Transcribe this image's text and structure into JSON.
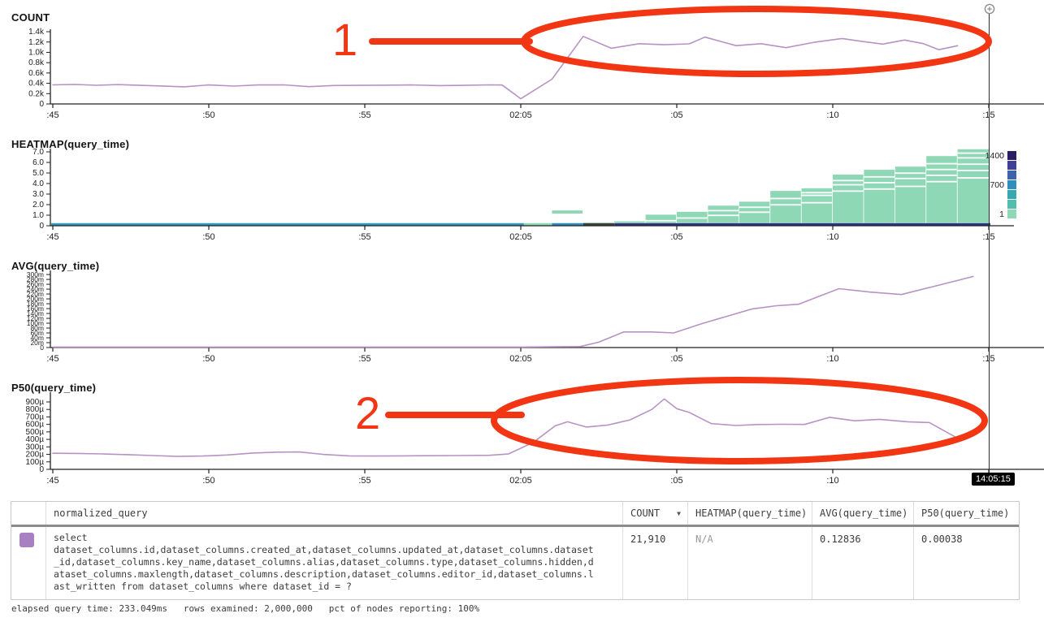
{
  "x_axis": {
    "tick_labels": [
      ":45",
      ":50",
      ":55",
      "02:05",
      ":05",
      ":10",
      ":15"
    ]
  },
  "crosshair": {
    "tooltip": "14:05:15"
  },
  "annotations": {
    "color": "#f23512",
    "items": [
      {
        "label": "1"
      },
      {
        "label": "2"
      }
    ]
  },
  "chart_data": [
    {
      "type": "line",
      "title": "COUNT",
      "series_name": "COUNT",
      "color": "#b793c3",
      "ylim": [
        0,
        1448
      ],
      "x_unit": "minutes_from_first_tick",
      "y_ticks": [
        {
          "label": "1.4k",
          "v": 1400
        },
        {
          "label": "1.2k",
          "v": 1200
        },
        {
          "label": "1.0k",
          "v": 1000
        },
        {
          "label": "0.8k",
          "v": 800
        },
        {
          "label": "0.6k",
          "v": 600
        },
        {
          "label": "0.4k",
          "v": 400
        },
        {
          "label": "0.2k",
          "v": 200
        },
        {
          "label": "0",
          "v": 0
        }
      ],
      "points": [
        [
          0,
          370
        ],
        [
          0.7,
          378
        ],
        [
          1.4,
          362
        ],
        [
          2.1,
          374
        ],
        [
          2.8,
          360
        ],
        [
          3.5,
          348
        ],
        [
          4.2,
          332
        ],
        [
          5,
          368
        ],
        [
          5.8,
          346
        ],
        [
          6.6,
          368
        ],
        [
          7.4,
          370
        ],
        [
          8.2,
          336
        ],
        [
          9,
          358
        ],
        [
          9.8,
          360
        ],
        [
          10.6,
          364
        ],
        [
          11.5,
          368
        ],
        [
          12.4,
          356
        ],
        [
          13.2,
          360
        ],
        [
          14,
          370
        ],
        [
          14.4,
          366
        ],
        [
          15,
          100
        ],
        [
          16,
          480
        ],
        [
          17,
          1310
        ],
        [
          17.9,
          1080
        ],
        [
          18.8,
          1168
        ],
        [
          19.6,
          1148
        ],
        [
          20.4,
          1165
        ],
        [
          20.9,
          1295
        ],
        [
          21.9,
          1130
        ],
        [
          22.7,
          1168
        ],
        [
          23.5,
          1090
        ],
        [
          24.4,
          1195
        ],
        [
          25.3,
          1268
        ],
        [
          25.9,
          1215
        ],
        [
          26.6,
          1160
        ],
        [
          27.3,
          1238
        ],
        [
          27.9,
          1170
        ],
        [
          28.4,
          1052
        ],
        [
          29,
          1128
        ]
      ]
    },
    {
      "type": "heatmap",
      "title": "HEATMAP(query_time)",
      "ylim": [
        0,
        7.31
      ],
      "x_unit": "minutes_from_first_tick",
      "cell_color": "#8ed8b6",
      "y_ticks": [
        {
          "label": "7.0",
          "v": 7
        },
        {
          "label": "6.0",
          "v": 6
        },
        {
          "label": "5.0",
          "v": 5
        },
        {
          "label": "4.0",
          "v": 4
        },
        {
          "label": "3.0",
          "v": 3
        },
        {
          "label": "2.0",
          "v": 2
        },
        {
          "label": "1.0",
          "v": 1
        },
        {
          "label": "0",
          "v": 0
        }
      ],
      "legend": {
        "position": "right",
        "labels": [
          "1400",
          "700",
          "1"
        ],
        "label_rows": [
          0,
          3,
          6
        ],
        "colors": [
          "#2d1e63",
          "#3f3f96",
          "#3d62ae",
          "#2e8fbc",
          "#38a8b0",
          "#53bdae",
          "#8ed8b6"
        ]
      },
      "baseline_segments": [
        {
          "t0": -0.05,
          "t1": 15.1,
          "color": "#3598ba"
        },
        {
          "t0": 15.1,
          "t1": 16.0,
          "color": "#8ed8b6"
        },
        {
          "t0": 16.0,
          "t1": 17.0,
          "color": "#2b8cc0"
        },
        {
          "t0": 17.0,
          "t1": 18.0,
          "color": "#3f413b"
        },
        {
          "t0": 18.0,
          "t1": 30.05,
          "color": "#322f87"
        }
      ],
      "floating_cells": [
        {
          "t0": 16.0,
          "t1": 17.0,
          "v0": 1.15,
          "v1": 1.45
        }
      ],
      "columns": [
        {
          "t0": 17.0,
          "t1": 18.0,
          "h": 0.3,
          "stripes": []
        },
        {
          "t0": 18.0,
          "t1": 19.0,
          "h": 0.42,
          "stripes": []
        },
        {
          "t0": 19.0,
          "t1": 20.0,
          "h": 1.05,
          "stripes": [
            0.55
          ]
        },
        {
          "t0": 20.0,
          "t1": 21.0,
          "h": 1.32,
          "stripes": [
            0.8
          ]
        },
        {
          "t0": 21.0,
          "t1": 22.0,
          "h": 1.9,
          "stripes": [
            1.05,
            1.5
          ]
        },
        {
          "t0": 22.0,
          "t1": 23.0,
          "h": 2.28,
          "stripes": [
            1.35,
            1.82
          ]
        },
        {
          "t0": 23.0,
          "t1": 24.0,
          "h": 3.3,
          "stripes": [
            2.05,
            2.65
          ]
        },
        {
          "t0": 24.0,
          "t1": 25.0,
          "h": 3.55,
          "stripes": [
            2.25,
            2.95,
            3.2
          ]
        },
        {
          "t0": 25.0,
          "t1": 26.0,
          "h": 4.85,
          "stripes": [
            3.35,
            3.95,
            4.35
          ]
        },
        {
          "t0": 26.0,
          "t1": 27.0,
          "h": 5.3,
          "stripes": [
            3.55,
            4.15,
            4.7
          ]
        },
        {
          "t0": 27.0,
          "t1": 28.0,
          "h": 5.6,
          "stripes": [
            3.8,
            4.55,
            5.05
          ]
        },
        {
          "t0": 28.0,
          "t1": 29.0,
          "h": 6.6,
          "stripes": [
            4.25,
            4.85,
            5.4,
            5.95
          ]
        },
        {
          "t0": 29.0,
          "t1": 30.05,
          "h": 7.25,
          "stripes": [
            4.6,
            5.3,
            5.9,
            6.5,
            6.95
          ]
        }
      ]
    },
    {
      "type": "line",
      "title": "AVG(query_time)",
      "series_name": "AVG(query_time)",
      "color": "#b793c3",
      "ylim": [
        0,
        317
      ],
      "y_unit": "milliseconds",
      "x_unit": "minutes_from_first_tick",
      "y_ticks": [
        {
          "label": "300m",
          "v": 300
        },
        {
          "label": "280m",
          "v": 280
        },
        {
          "label": "260m",
          "v": 260
        },
        {
          "label": "240m",
          "v": 240
        },
        {
          "label": "220m",
          "v": 220
        },
        {
          "label": "200m",
          "v": 200
        },
        {
          "label": "180m",
          "v": 180
        },
        {
          "label": "160m",
          "v": 160
        },
        {
          "label": "140m",
          "v": 140
        },
        {
          "label": "120m",
          "v": 120
        },
        {
          "label": "100m",
          "v": 100
        },
        {
          "label": "80m",
          "v": 80
        },
        {
          "label": "60m",
          "v": 60
        },
        {
          "label": "40m",
          "v": 40
        },
        {
          "label": "20m",
          "v": 20
        },
        {
          "label": "0",
          "v": 0
        }
      ],
      "points": [
        [
          0,
          2
        ],
        [
          2,
          2
        ],
        [
          4,
          2
        ],
        [
          6,
          2
        ],
        [
          8,
          2
        ],
        [
          10,
          2
        ],
        [
          12,
          2
        ],
        [
          14,
          2
        ],
        [
          15,
          2
        ],
        [
          16,
          3
        ],
        [
          16.9,
          4
        ],
        [
          17.5,
          22
        ],
        [
          18.3,
          64
        ],
        [
          19.2,
          64
        ],
        [
          19.9,
          60
        ],
        [
          20.8,
          98
        ],
        [
          21.6,
          128
        ],
        [
          22.4,
          158
        ],
        [
          23.2,
          172
        ],
        [
          23.9,
          178
        ],
        [
          25.2,
          242
        ],
        [
          26.2,
          228
        ],
        [
          27.2,
          218
        ],
        [
          28.2,
          250
        ],
        [
          29.5,
          292
        ]
      ]
    },
    {
      "type": "line",
      "title": "P50(query_time)",
      "series_name": "P50(query_time)",
      "color": "#b793c3",
      "ylim": [
        0,
        1030
      ],
      "y_unit": "microseconds",
      "x_unit": "minutes_from_first_tick",
      "y_ticks": [
        {
          "label": "900µ",
          "v": 900
        },
        {
          "label": "800µ",
          "v": 800
        },
        {
          "label": "700µ",
          "v": 700
        },
        {
          "label": "600µ",
          "v": 600
        },
        {
          "label": "500µ",
          "v": 500
        },
        {
          "label": "400µ",
          "v": 400
        },
        {
          "label": "300µ",
          "v": 300
        },
        {
          "label": "200µ",
          "v": 200
        },
        {
          "label": "100µ",
          "v": 100
        },
        {
          "label": "0",
          "v": 0
        }
      ],
      "points": [
        [
          0,
          215
        ],
        [
          0.8,
          212
        ],
        [
          1.6,
          206
        ],
        [
          2.4,
          196
        ],
        [
          3.2,
          184
        ],
        [
          4,
          172
        ],
        [
          4.8,
          178
        ],
        [
          5.6,
          192
        ],
        [
          6.4,
          218
        ],
        [
          7.2,
          230
        ],
        [
          7.9,
          232
        ],
        [
          8.7,
          198
        ],
        [
          9.5,
          180
        ],
        [
          10.3,
          178
        ],
        [
          11.2,
          180
        ],
        [
          12.1,
          182
        ],
        [
          13,
          184
        ],
        [
          14,
          188
        ],
        [
          14.6,
          205
        ],
        [
          15.4,
          360
        ],
        [
          16.1,
          580
        ],
        [
          16.5,
          635
        ],
        [
          17.1,
          565
        ],
        [
          17.8,
          592
        ],
        [
          18.5,
          660
        ],
        [
          19.2,
          800
        ],
        [
          19.6,
          940
        ],
        [
          20,
          810
        ],
        [
          20.4,
          760
        ],
        [
          21.1,
          612
        ],
        [
          21.9,
          585
        ],
        [
          22.6,
          598
        ],
        [
          23.4,
          602
        ],
        [
          24.1,
          600
        ],
        [
          24.9,
          695
        ],
        [
          25.7,
          648
        ],
        [
          26.5,
          668
        ],
        [
          27.4,
          635
        ],
        [
          28.1,
          625
        ],
        [
          29,
          415
        ]
      ]
    }
  ],
  "table": {
    "headers": [
      "normalized_query",
      "COUNT",
      "HEATMAP(query_time)",
      "AVG(query_time)",
      "P50(query_time)"
    ],
    "sort": {
      "column": "COUNT",
      "direction": "desc"
    },
    "row": {
      "swatch_color": "#a87fc0",
      "normalized_query": "select\ndataset_columns.id,dataset_columns.created_at,dataset_columns.updated_at,dataset_columns.dataset_id,dataset_columns.key_name,dataset_columns.alias,dataset_columns.type,dataset_columns.hidden,dataset_columns.maxlength,dataset_columns.description,dataset_columns.editor_id,dataset_columns.last_written from dataset_columns where dataset_id = ?",
      "count": "21,910",
      "heatmap": "N/A",
      "avg": "0.12836",
      "p50": "0.00038"
    }
  },
  "footer": {
    "stats": "elapsed query time: 233.049ms   rows examined: 2,000,000   pct of nodes reporting: 100%"
  }
}
